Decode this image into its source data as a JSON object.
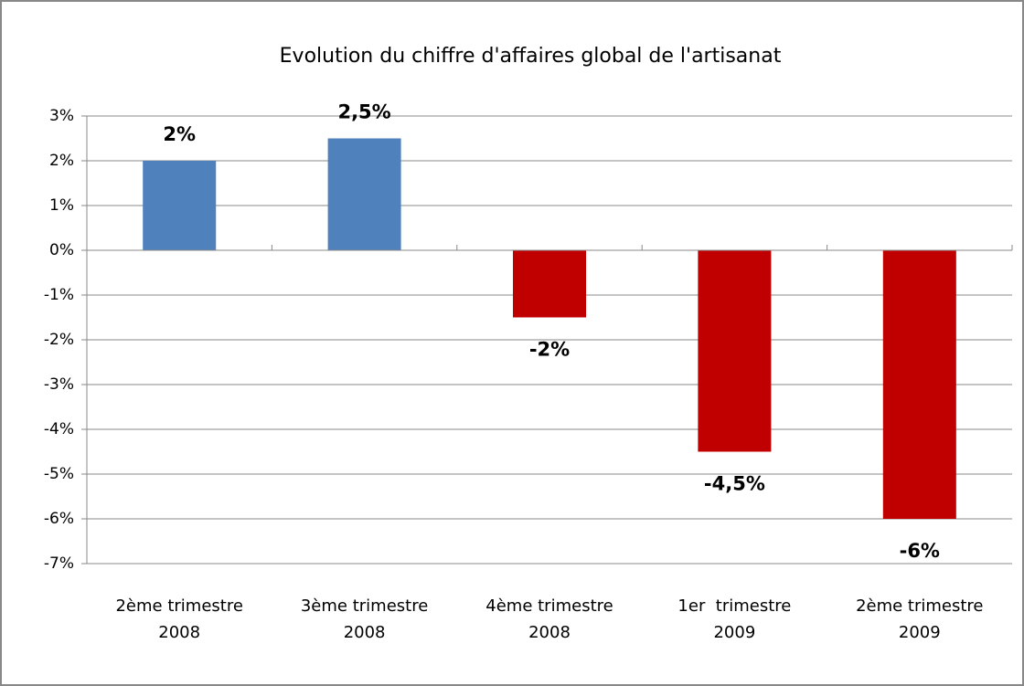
{
  "chart_data": {
    "type": "bar",
    "title": "Evolution du chiffre d'affaires global de l'artisanat",
    "categories": [
      [
        "2ème trimestre",
        "2008"
      ],
      [
        "3ème trimestre",
        "2008"
      ],
      [
        "4ème trimestre",
        "2008"
      ],
      [
        "1er  trimestre",
        "2009"
      ],
      [
        "2ème trimestre",
        "2009"
      ]
    ],
    "values": [
      2,
      2.5,
      -1.5,
      -4.5,
      -6
    ],
    "value_labels": [
      "2%",
      "2,5%",
      "-2%",
      "-4,5%",
      "-6%"
    ],
    "colors": [
      "#4f81bd",
      "#4f81bd",
      "#c00000",
      "#c00000",
      "#c00000"
    ],
    "ylim": [
      -7,
      3
    ],
    "yticks": [
      {
        "value": -7,
        "label": "-7%"
      },
      {
        "value": -6,
        "label": "-6%"
      },
      {
        "value": -5,
        "label": "-5%"
      },
      {
        "value": -4,
        "label": "-4%"
      },
      {
        "value": -3,
        "label": "-3%"
      },
      {
        "value": -2,
        "label": "-2%"
      },
      {
        "value": -1,
        "label": "-1%"
      },
      {
        "value": 0,
        "label": "0%"
      },
      {
        "value": 1,
        "label": "1%"
      },
      {
        "value": 2,
        "label": "2%"
      },
      {
        "value": 3,
        "label": "3%"
      }
    ],
    "grid": true
  }
}
